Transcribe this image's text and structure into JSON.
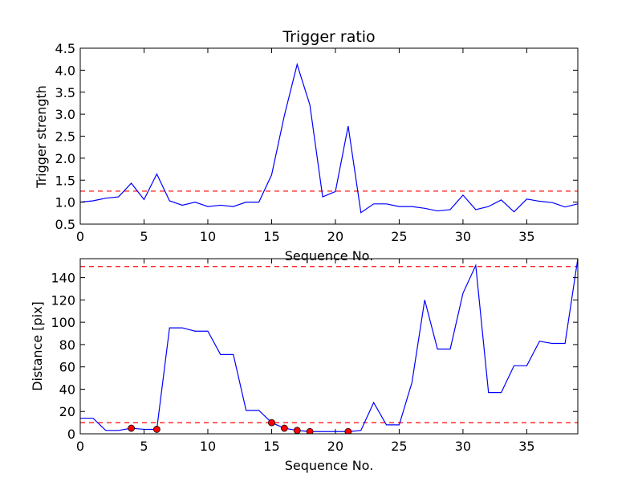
{
  "chart_data": [
    {
      "type": "line",
      "title": "Trigger ratio",
      "xlabel": "Sequence No.",
      "ylabel": "Trigger strength",
      "xlim": [
        0,
        39
      ],
      "ylim": [
        0.5,
        4.5
      ],
      "xticks": [
        0,
        5,
        10,
        15,
        20,
        25,
        30,
        35
      ],
      "xtick_labels": [
        "0",
        "5",
        "10",
        "15",
        "20",
        "25",
        "30",
        "35"
      ],
      "yticks": [
        0.5,
        1.0,
        1.5,
        2.0,
        2.5,
        3.0,
        3.5,
        4.0,
        4.5
      ],
      "ytick_labels": [
        "0.5",
        "1.0",
        "1.5",
        "2.0",
        "2.5",
        "3.0",
        "3.5",
        "4.0",
        "4.5"
      ],
      "grid": false,
      "series": [
        {
          "color": "#0000ff",
          "style": "solid",
          "x": [
            0,
            1,
            2,
            3,
            4,
            5,
            6,
            7,
            8,
            9,
            10,
            11,
            12,
            13,
            14,
            15,
            16,
            17,
            18,
            19,
            20,
            21,
            22,
            23,
            24,
            25,
            26,
            27,
            28,
            29,
            30,
            31,
            32,
            33,
            34,
            35,
            36,
            37,
            38,
            39
          ],
          "values": [
            1.0,
            1.03,
            1.09,
            1.12,
            1.43,
            1.06,
            1.64,
            1.03,
            0.93,
            1.0,
            0.9,
            0.93,
            0.9,
            1.0,
            1.0,
            1.62,
            2.97,
            4.13,
            3.21,
            1.12,
            1.24,
            2.73,
            0.76,
            0.96,
            0.96,
            0.9,
            0.9,
            0.86,
            0.8,
            0.83,
            1.16,
            0.83,
            0.9,
            1.05,
            0.78,
            1.07,
            1.02,
            0.99,
            0.89,
            0.96
          ]
        }
      ],
      "hlines": [
        {
          "y": 1.25,
          "color": "#ff0000",
          "style": "dashed"
        }
      ]
    },
    {
      "type": "line",
      "title": "",
      "xlabel": "Sequence No.",
      "ylabel": "Distance [pix]",
      "xlim": [
        0,
        39
      ],
      "ylim": [
        0,
        157
      ],
      "xticks": [
        0,
        5,
        10,
        15,
        20,
        25,
        30,
        35
      ],
      "xtick_labels": [
        "0",
        "5",
        "10",
        "15",
        "20",
        "25",
        "30",
        "35"
      ],
      "yticks": [
        0,
        20,
        40,
        60,
        80,
        100,
        120,
        140
      ],
      "ytick_labels": [
        "0",
        "20",
        "40",
        "60",
        "80",
        "100",
        "120",
        "140"
      ],
      "grid": false,
      "series": [
        {
          "color": "#0000ff",
          "style": "solid",
          "x": [
            0,
            1,
            2,
            3,
            4,
            5,
            6,
            7,
            8,
            9,
            10,
            11,
            12,
            13,
            14,
            15,
            16,
            17,
            18,
            19,
            20,
            21,
            22,
            23,
            24,
            25,
            26,
            27,
            28,
            29,
            30,
            31,
            32,
            33,
            34,
            35,
            36,
            37,
            38,
            39
          ],
          "values": [
            14,
            14,
            3,
            3,
            5,
            4,
            4,
            95,
            95,
            92,
            92,
            71,
            71,
            21,
            21,
            10,
            5,
            3,
            2,
            2,
            2,
            2,
            3,
            28,
            8,
            8,
            46,
            120,
            76,
            76,
            126,
            151,
            37,
            37,
            61,
            61,
            83,
            81,
            81,
            157
          ]
        },
        {
          "color": "#ff0000",
          "style": "markers",
          "x": [
            4,
            6,
            15,
            16,
            17,
            18,
            21
          ],
          "values": [
            5,
            4,
            10,
            5,
            3,
            2,
            2
          ]
        }
      ],
      "hlines": [
        {
          "y": 150,
          "color": "#ff0000",
          "style": "dashed"
        },
        {
          "y": 10,
          "color": "#ff0000",
          "style": "dashed"
        }
      ]
    }
  ]
}
